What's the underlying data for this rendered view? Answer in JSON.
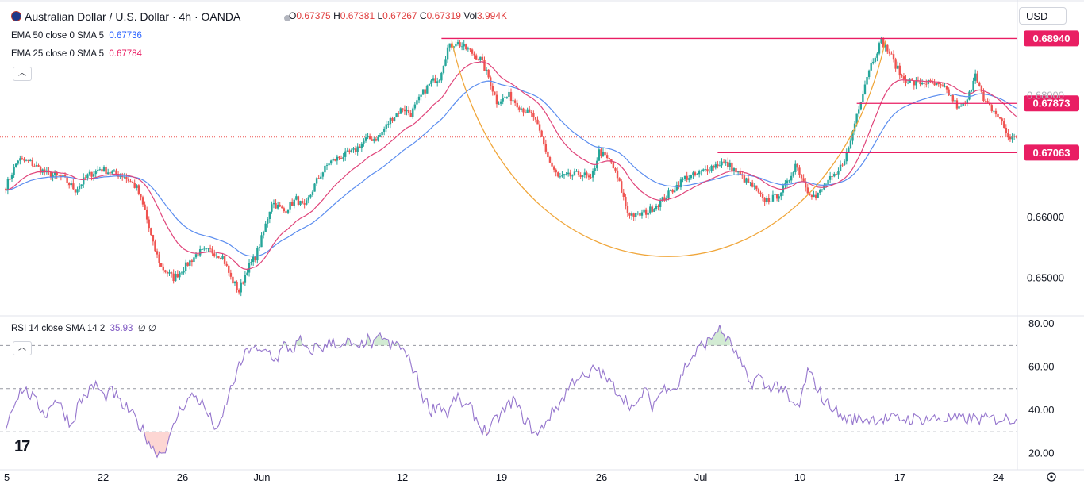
{
  "header": {
    "symbol": "Australian Dollar / U.S. Dollar · 4h · OANDA",
    "o_label": "O",
    "o": "0.67375",
    "h_label": "H",
    "h": "0.67381",
    "l_label": "L",
    "l": "0.67267",
    "c_label": "C",
    "c": "0.67319",
    "vol_label": "Vol",
    "vol": "3.994K",
    "currency": "USD"
  },
  "indicators": {
    "ema50_label": "EMA 50 close 0 SMA 5",
    "ema50_value": "0.67736",
    "ema50_color": "#5b8def",
    "ema25_label": "EMA 25 close 0 SMA 5",
    "ema25_value": "0.67784",
    "ema25_color": "#e0447a",
    "rsi_label": "RSI 14 close SMA 14 2",
    "rsi_value": "35.93",
    "rsi_extra": "∅ ∅",
    "rsi_color": "#9575cd"
  },
  "chart_data": {
    "type": "candlestick",
    "price_axis_labels": [
      "0.66000",
      "0.65000"
    ],
    "price_axis_partial": "0.68000",
    "price_ylim": [
      0.6455,
      0.6905
    ],
    "levels": [
      {
        "value": 0.6894,
        "label": "0.68940"
      },
      {
        "value": 0.67873,
        "label": "0.67873"
      },
      {
        "value": 0.67063,
        "label": "0.67063"
      }
    ],
    "level_color": "#e91e63",
    "last_price": 0.67319,
    "rsi_axis_labels": [
      "80.00",
      "60.00",
      "40.00",
      "20.00"
    ],
    "rsi_ylim": [
      15,
      83
    ],
    "rsi_bands": [
      70,
      50,
      30
    ],
    "x_ticks": [
      "5",
      "22",
      "26",
      "Jun",
      "12",
      "19",
      "26",
      "Jul",
      "10",
      "17",
      "24"
    ],
    "rsi_anchors": [
      [
        0,
        32
      ],
      [
        4,
        44
      ],
      [
        8,
        50
      ],
      [
        12,
        47
      ],
      [
        16,
        42
      ],
      [
        20,
        38
      ],
      [
        24,
        46
      ],
      [
        28,
        40
      ],
      [
        32,
        33
      ],
      [
        36,
        44
      ],
      [
        40,
        48
      ],
      [
        44,
        52
      ],
      [
        48,
        46
      ],
      [
        52,
        49
      ],
      [
        56,
        43
      ],
      [
        60,
        40
      ],
      [
        64,
        35
      ],
      [
        68,
        29
      ],
      [
        72,
        22
      ],
      [
        76,
        20
      ],
      [
        80,
        26
      ],
      [
        84,
        38
      ],
      [
        88,
        44
      ],
      [
        92,
        47
      ],
      [
        96,
        43
      ],
      [
        100,
        36
      ],
      [
        104,
        30
      ],
      [
        108,
        44
      ],
      [
        112,
        55
      ],
      [
        116,
        64
      ],
      [
        120,
        70
      ],
      [
        124,
        66
      ],
      [
        128,
        68
      ],
      [
        132,
        63
      ],
      [
        136,
        70
      ],
      [
        140,
        68
      ],
      [
        144,
        72
      ],
      [
        148,
        66
      ],
      [
        152,
        70
      ],
      [
        156,
        69
      ],
      [
        160,
        73
      ],
      [
        164,
        68
      ],
      [
        168,
        72
      ],
      [
        172,
        67
      ],
      [
        176,
        73
      ],
      [
        180,
        70
      ],
      [
        184,
        75
      ],
      [
        188,
        69
      ],
      [
        192,
        71
      ],
      [
        196,
        65
      ],
      [
        200,
        58
      ],
      [
        204,
        46
      ],
      [
        208,
        40
      ],
      [
        212,
        43
      ],
      [
        216,
        38
      ],
      [
        220,
        46
      ],
      [
        224,
        42
      ],
      [
        228,
        40
      ],
      [
        232,
        32
      ],
      [
        236,
        30
      ],
      [
        240,
        36
      ],
      [
        244,
        40
      ],
      [
        248,
        45
      ],
      [
        252,
        38
      ],
      [
        256,
        33
      ],
      [
        260,
        28
      ],
      [
        264,
        35
      ],
      [
        268,
        40
      ],
      [
        272,
        45
      ],
      [
        276,
        52
      ],
      [
        280,
        56
      ],
      [
        284,
        54
      ],
      [
        288,
        60
      ],
      [
        292,
        56
      ],
      [
        296,
        52
      ],
      [
        300,
        48
      ],
      [
        304,
        44
      ],
      [
        308,
        40
      ],
      [
        312,
        50
      ],
      [
        316,
        42
      ],
      [
        320,
        48
      ],
      [
        324,
        52
      ],
      [
        328,
        50
      ],
      [
        332,
        60
      ],
      [
        336,
        65
      ],
      [
        340,
        70
      ],
      [
        344,
        72
      ],
      [
        348,
        78
      ],
      [
        352,
        74
      ],
      [
        356,
        68
      ],
      [
        360,
        60
      ],
      [
        364,
        52
      ],
      [
        368,
        56
      ],
      [
        372,
        50
      ],
      [
        376,
        52
      ],
      [
        380,
        50
      ],
      [
        384,
        42
      ],
      [
        388,
        42
      ],
      [
        392,
        58
      ],
      [
        396,
        52
      ],
      [
        400,
        44
      ],
      [
        404,
        42
      ],
      [
        408,
        37
      ],
      [
        412,
        36
      ]
    ],
    "price_anchors": [
      [
        0,
        0.665
      ],
      [
        6,
        0.6695
      ],
      [
        12,
        0.669
      ],
      [
        20,
        0.6672
      ],
      [
        28,
        0.6665
      ],
      [
        34,
        0.6645
      ],
      [
        40,
        0.6668
      ],
      [
        46,
        0.668
      ],
      [
        52,
        0.6673
      ],
      [
        58,
        0.6668
      ],
      [
        64,
        0.6648
      ],
      [
        68,
        0.661
      ],
      [
        72,
        0.6555
      ],
      [
        76,
        0.6518
      ],
      [
        82,
        0.65
      ],
      [
        88,
        0.652
      ],
      [
        94,
        0.6542
      ],
      [
        100,
        0.6545
      ],
      [
        106,
        0.6535
      ],
      [
        110,
        0.65
      ],
      [
        114,
        0.6478
      ],
      [
        118,
        0.6515
      ],
      [
        122,
        0.6535
      ],
      [
        126,
        0.6575
      ],
      [
        130,
        0.6625
      ],
      [
        136,
        0.661
      ],
      [
        142,
        0.663
      ],
      [
        146,
        0.6615
      ],
      [
        152,
        0.666
      ],
      [
        158,
        0.669
      ],
      [
        164,
        0.67
      ],
      [
        170,
        0.6708
      ],
      [
        176,
        0.6728
      ],
      [
        182,
        0.673
      ],
      [
        188,
        0.676
      ],
      [
        194,
        0.678
      ],
      [
        198,
        0.677
      ],
      [
        204,
        0.6805
      ],
      [
        208,
        0.6822
      ],
      [
        212,
        0.683
      ],
      [
        216,
        0.6878
      ],
      [
        220,
        0.6888
      ],
      [
        226,
        0.6875
      ],
      [
        232,
        0.686
      ],
      [
        236,
        0.683
      ],
      [
        240,
        0.679
      ],
      [
        246,
        0.68
      ],
      [
        252,
        0.678
      ],
      [
        258,
        0.6765
      ],
      [
        262,
        0.673
      ],
      [
        266,
        0.669
      ],
      [
        270,
        0.6665
      ],
      [
        276,
        0.6668
      ],
      [
        282,
        0.6672
      ],
      [
        286,
        0.666
      ],
      [
        290,
        0.6708
      ],
      [
        296,
        0.669
      ],
      [
        300,
        0.6655
      ],
      [
        304,
        0.6608
      ],
      [
        308,
        0.6602
      ],
      [
        314,
        0.661
      ],
      [
        320,
        0.6625
      ],
      [
        326,
        0.6645
      ],
      [
        332,
        0.6665
      ],
      [
        338,
        0.667
      ],
      [
        344,
        0.6682
      ],
      [
        350,
        0.669
      ],
      [
        354,
        0.6685
      ],
      [
        360,
        0.6665
      ],
      [
        366,
        0.6648
      ],
      [
        370,
        0.6628
      ],
      [
        376,
        0.6632
      ],
      [
        382,
        0.6655
      ],
      [
        386,
        0.6688
      ],
      [
        392,
        0.6645
      ],
      [
        396,
        0.6632
      ],
      [
        402,
        0.666
      ],
      [
        406,
        0.6668
      ],
      [
        412,
        0.6712
      ],
      [
        416,
        0.677
      ],
      [
        422,
        0.6845
      ],
      [
        428,
        0.689
      ],
      [
        432,
        0.687
      ],
      [
        438,
        0.683
      ],
      [
        444,
        0.682
      ],
      [
        450,
        0.6822
      ],
      [
        456,
        0.6815
      ],
      [
        460,
        0.6808
      ],
      [
        466,
        0.6778
      ],
      [
        470,
        0.679
      ],
      [
        474,
        0.684
      ],
      [
        478,
        0.679
      ],
      [
        482,
        0.6778
      ],
      [
        486,
        0.6762
      ],
      [
        490,
        0.6732
      ],
      [
        494,
        0.673
      ]
    ]
  }
}
